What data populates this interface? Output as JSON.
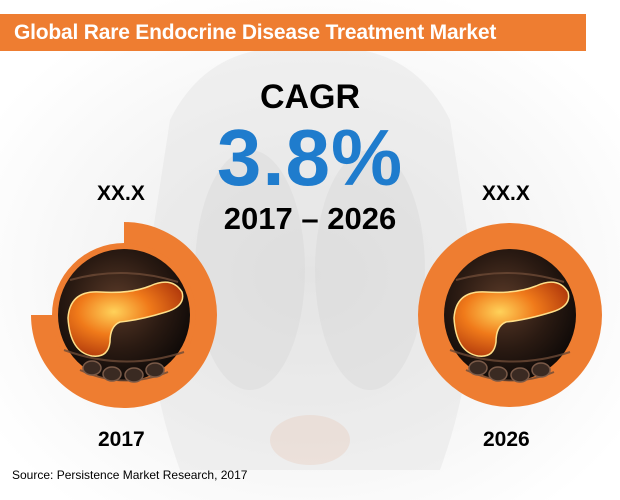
{
  "title": "Global Rare Endocrine Disease Treatment Market",
  "cagr": {
    "label": "CAGR",
    "value": "3.8%",
    "period": "2017 – 2026"
  },
  "left": {
    "value_label": "XX.X",
    "year": "2017"
  },
  "right": {
    "value_label": "XX.X",
    "year": "2026"
  },
  "source": "Source: Persistence Market Research, 2017",
  "colors": {
    "accent": "#ee7d31",
    "cagr_blue": "#1f7ccd",
    "title_text": "#ffffff"
  },
  "icons": [
    "pancreas-illustration",
    "human-torso-watermark"
  ]
}
